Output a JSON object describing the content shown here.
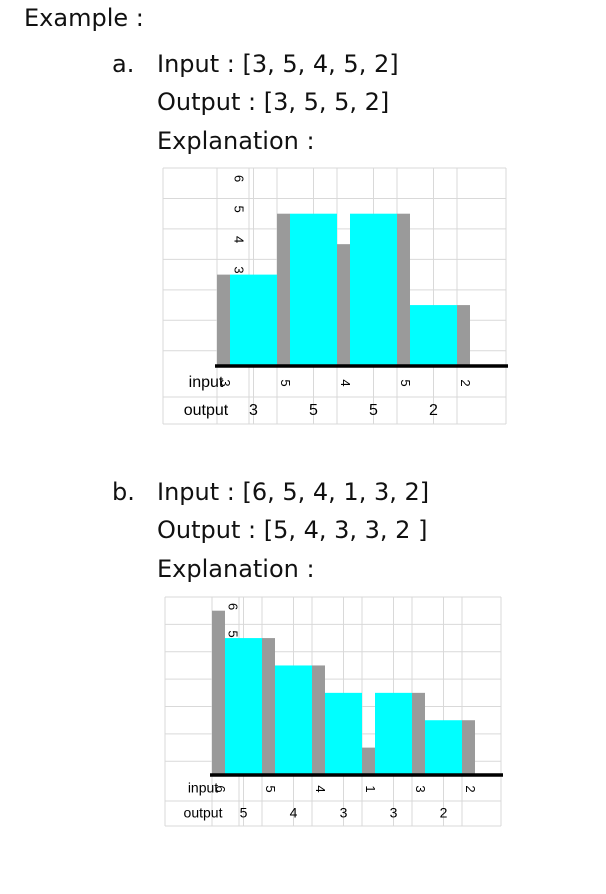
{
  "heading": "Example :",
  "examples": [
    {
      "marker": "a.",
      "input_line": "Input : [3, 5, 4, 5, 2]",
      "output_line": "Output : [3, 5, 5, 2]",
      "explanation": "Explanation :"
    },
    {
      "marker": "b.",
      "input_line": "Input : [6, 5, 4, 1, 3, 2]",
      "output_line": "Output : [5, 4, 3, 3, 2 ]",
      "explanation": "Explanation :"
    }
  ],
  "colors": {
    "bar": "#00ffff",
    "marker_bar": "#9a9a9a",
    "grid": "#d9d9d9",
    "axis": "#000000"
  },
  "chart_data": [
    {
      "type": "bar",
      "row_labels": [
        "input",
        "output"
      ],
      "y_ticks": [
        "0",
        "1",
        "2",
        "3",
        "4",
        "5",
        "6"
      ],
      "ylim": [
        0,
        6
      ],
      "input": [
        3,
        5,
        4,
        5,
        2
      ],
      "output": [
        3,
        5,
        5,
        2
      ]
    },
    {
      "type": "bar",
      "row_labels": [
        "input",
        "output"
      ],
      "y_ticks": [
        "0",
        "1",
        "2",
        "3",
        "4",
        "5",
        "6"
      ],
      "ylim": [
        0,
        6
      ],
      "input": [
        6,
        5,
        4,
        1,
        3,
        2
      ],
      "output": [
        5,
        4,
        3,
        3,
        2
      ]
    }
  ]
}
